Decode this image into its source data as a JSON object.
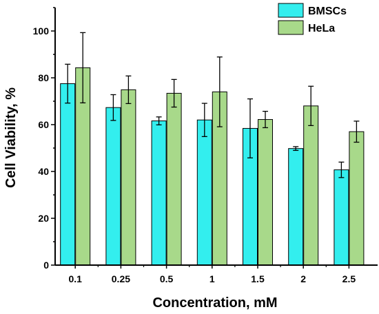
{
  "chart_data": {
    "type": "bar",
    "title": "",
    "xlabel": "Concentration, mM",
    "ylabel": "Cell Viability, %",
    "categories": [
      "0.1",
      "0.25",
      "0.5",
      "1",
      "1.5",
      "2",
      "2.5"
    ],
    "ylim": [
      0,
      110
    ],
    "yticks": [
      0,
      20,
      40,
      60,
      80,
      100
    ],
    "grid": false,
    "legend_position": "top-right",
    "series": [
      {
        "name": "BMSCs",
        "color": "#33eeee",
        "values": [
          77.5,
          67.3,
          61.6,
          62.0,
          58.4,
          49.8,
          40.7
        ],
        "errors": [
          8.3,
          5.5,
          1.7,
          7.1,
          12.6,
          0.8,
          3.3
        ]
      },
      {
        "name": "HeLa",
        "color": "#a8d98a",
        "values": [
          84.3,
          74.9,
          73.4,
          74.0,
          62.2,
          68.0,
          57.0
        ],
        "errors": [
          15.0,
          5.9,
          5.9,
          14.9,
          3.5,
          8.4,
          4.5
        ]
      }
    ]
  }
}
